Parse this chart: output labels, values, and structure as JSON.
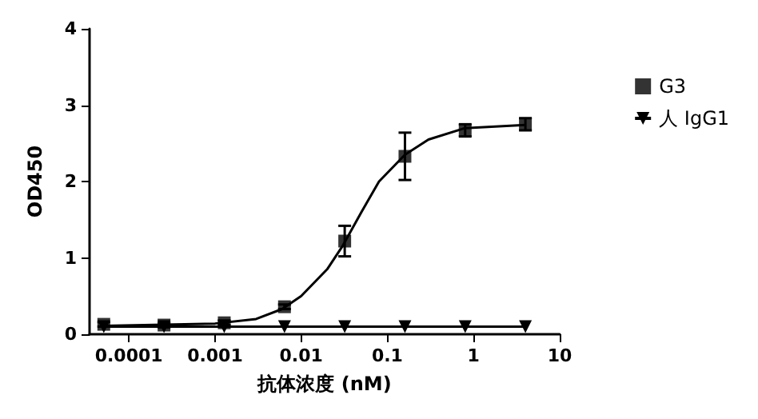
{
  "chart_data": {
    "type": "scatter",
    "xlabel": "抗体浓度 (nM)",
    "ylabel": "OD450",
    "log": "x",
    "xlim": [
      3.5e-05,
      10
    ],
    "xticks": [
      0.0001,
      0.001,
      0.01,
      0.1,
      1,
      10
    ],
    "ylim": [
      0,
      4
    ],
    "yticks": [
      0,
      1,
      2,
      3,
      4
    ],
    "grid": false,
    "legend": "right",
    "series": [
      {
        "name": "G3",
        "marker": "square",
        "color": "#000000",
        "x": [
          5.12e-05,
          0.000256,
          0.00128,
          0.0064,
          0.032,
          0.16,
          0.8,
          4
        ],
        "values": [
          0.13,
          0.12,
          0.15,
          0.36,
          1.22,
          2.33,
          2.67,
          2.75
        ],
        "errors": [
          0.03,
          0.03,
          0.03,
          0.03,
          0.2,
          0.31,
          0.08,
          0.08
        ]
      },
      {
        "type": "line",
        "marker": "none",
        "color": "#000000",
        "x": [
          5.12e-05,
          0.001,
          0.003,
          0.006,
          0.01,
          0.02,
          0.03,
          0.05,
          0.08,
          0.16,
          0.3,
          0.8,
          4
        ],
        "values": [
          0.11,
          0.14,
          0.2,
          0.33,
          0.5,
          0.85,
          1.15,
          1.6,
          2.0,
          2.35,
          2.55,
          2.7,
          2.74
        ]
      },
      {
        "name": "人 IgG1",
        "type": "line",
        "marker": "triangle",
        "color": "#000000",
        "x": [
          5.12e-05,
          0.000256,
          0.00128,
          0.0064,
          0.032,
          0.16,
          0.8,
          4
        ],
        "values": [
          0.1,
          0.1,
          0.1,
          0.1,
          0.1,
          0.1,
          0.1,
          0.1
        ]
      }
    ]
  }
}
